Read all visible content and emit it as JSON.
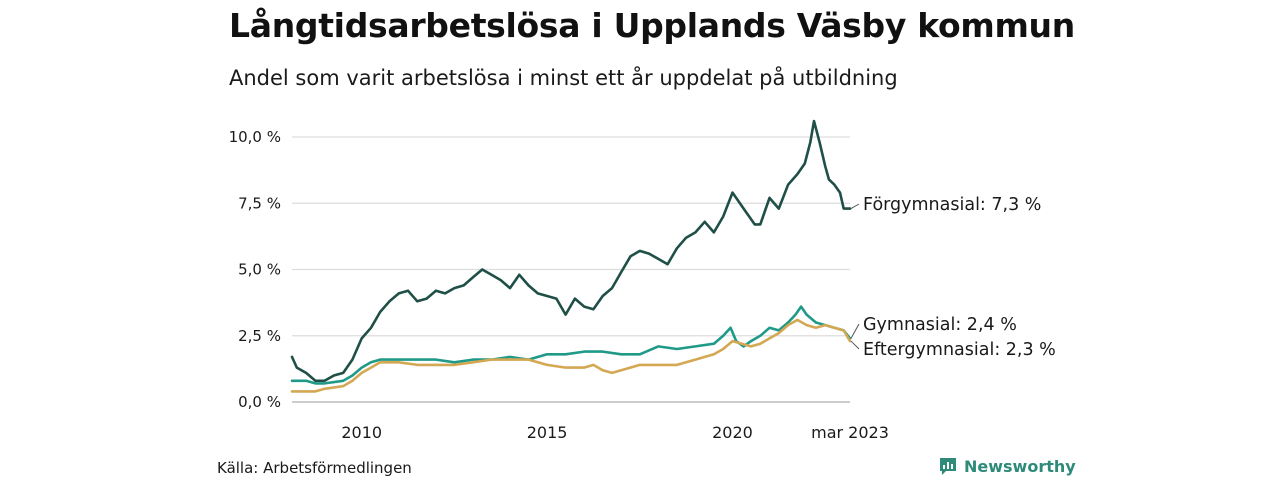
{
  "title": "Långtidsarbetslösa i Upplands Väsby kommun",
  "subtitle": "Andel som varit arbetslösa i minst ett år uppdelat på utbildning",
  "source": "Källa: Arbetsförmedlingen",
  "brand": "Newsworthy",
  "colors": {
    "forgymnasial": "#1f4f46",
    "gymnasial": "#1f9a88",
    "eftergymnasial": "#d4a853",
    "grid": "#dddddd",
    "brand": "#2e8b7a"
  },
  "chart_data": {
    "type": "line",
    "title": "Långtidsarbetslösa i Upplands Väsby kommun",
    "subtitle": "Andel som varit arbetslösa i minst ett år uppdelat på utbildning",
    "xlabel": "",
    "ylabel": "",
    "xlim": [
      2008.12,
      2023.17
    ],
    "ylim": [
      0,
      10.5
    ],
    "y_ticks": [
      {
        "value": 0,
        "label": "0,0 %"
      },
      {
        "value": 2.5,
        "label": "2,5 %"
      },
      {
        "value": 5,
        "label": "5,0 %"
      },
      {
        "value": 7.5,
        "label": "7,5 %"
      },
      {
        "value": 10,
        "label": "10,0 %"
      }
    ],
    "x_ticks": [
      {
        "value": 2010,
        "label": "2010"
      },
      {
        "value": 2015,
        "label": "2015"
      },
      {
        "value": 2020,
        "label": "2020"
      },
      {
        "value": 2023.17,
        "label": "mar 2023"
      }
    ],
    "grid": true,
    "legend": "direct labels at line ends",
    "series": [
      {
        "name": "Förgymnasial",
        "end_label": "Förgymnasial: 7,3 %",
        "color": "#1f4f46",
        "points": [
          [
            2008.12,
            1.7
          ],
          [
            2008.25,
            1.3
          ],
          [
            2008.5,
            1.1
          ],
          [
            2008.75,
            0.8
          ],
          [
            2009.0,
            0.8
          ],
          [
            2009.25,
            1.0
          ],
          [
            2009.5,
            1.1
          ],
          [
            2009.75,
            1.6
          ],
          [
            2010.0,
            2.4
          ],
          [
            2010.25,
            2.8
          ],
          [
            2010.5,
            3.4
          ],
          [
            2010.75,
            3.8
          ],
          [
            2011.0,
            4.1
          ],
          [
            2011.25,
            4.2
          ],
          [
            2011.5,
            3.8
          ],
          [
            2011.75,
            3.9
          ],
          [
            2012.0,
            4.2
          ],
          [
            2012.25,
            4.1
          ],
          [
            2012.5,
            4.3
          ],
          [
            2012.75,
            4.4
          ],
          [
            2013.0,
            4.7
          ],
          [
            2013.25,
            5.0
          ],
          [
            2013.5,
            4.8
          ],
          [
            2013.75,
            4.6
          ],
          [
            2014.0,
            4.3
          ],
          [
            2014.25,
            4.8
          ],
          [
            2014.5,
            4.4
          ],
          [
            2014.75,
            4.1
          ],
          [
            2015.0,
            4.0
          ],
          [
            2015.25,
            3.9
          ],
          [
            2015.5,
            3.3
          ],
          [
            2015.75,
            3.9
          ],
          [
            2016.0,
            3.6
          ],
          [
            2016.25,
            3.5
          ],
          [
            2016.5,
            4.0
          ],
          [
            2016.75,
            4.3
          ],
          [
            2017.0,
            4.9
          ],
          [
            2017.25,
            5.5
          ],
          [
            2017.5,
            5.7
          ],
          [
            2017.75,
            5.6
          ],
          [
            2018.0,
            5.4
          ],
          [
            2018.25,
            5.2
          ],
          [
            2018.5,
            5.8
          ],
          [
            2018.75,
            6.2
          ],
          [
            2019.0,
            6.4
          ],
          [
            2019.25,
            6.8
          ],
          [
            2019.5,
            6.4
          ],
          [
            2019.75,
            7.0
          ],
          [
            2020.0,
            7.9
          ],
          [
            2020.2,
            7.5
          ],
          [
            2020.4,
            7.1
          ],
          [
            2020.6,
            6.7
          ],
          [
            2020.75,
            6.7
          ],
          [
            2021.0,
            7.7
          ],
          [
            2021.25,
            7.3
          ],
          [
            2021.5,
            8.2
          ],
          [
            2021.75,
            8.6
          ],
          [
            2021.95,
            9.0
          ],
          [
            2022.1,
            9.8
          ],
          [
            2022.2,
            10.6
          ],
          [
            2022.35,
            9.8
          ],
          [
            2022.5,
            8.9
          ],
          [
            2022.6,
            8.4
          ],
          [
            2022.75,
            8.2
          ],
          [
            2022.9,
            7.9
          ],
          [
            2023.0,
            7.3
          ],
          [
            2023.17,
            7.3
          ]
        ]
      },
      {
        "name": "Gymnasial",
        "end_label": "Gymnasial: 2,4 %",
        "color": "#1f9a88",
        "points": [
          [
            2008.12,
            0.8
          ],
          [
            2008.5,
            0.8
          ],
          [
            2008.75,
            0.7
          ],
          [
            2009.0,
            0.7
          ],
          [
            2009.5,
            0.8
          ],
          [
            2009.75,
            1.0
          ],
          [
            2010.0,
            1.3
          ],
          [
            2010.25,
            1.5
          ],
          [
            2010.5,
            1.6
          ],
          [
            2011.0,
            1.6
          ],
          [
            2011.5,
            1.6
          ],
          [
            2012.0,
            1.6
          ],
          [
            2012.5,
            1.5
          ],
          [
            2013.0,
            1.6
          ],
          [
            2013.5,
            1.6
          ],
          [
            2014.0,
            1.7
          ],
          [
            2014.5,
            1.6
          ],
          [
            2015.0,
            1.8
          ],
          [
            2015.5,
            1.8
          ],
          [
            2016.0,
            1.9
          ],
          [
            2016.5,
            1.9
          ],
          [
            2017.0,
            1.8
          ],
          [
            2017.5,
            1.8
          ],
          [
            2018.0,
            2.1
          ],
          [
            2018.5,
            2.0
          ],
          [
            2019.0,
            2.1
          ],
          [
            2019.5,
            2.2
          ],
          [
            2019.75,
            2.5
          ],
          [
            2019.95,
            2.8
          ],
          [
            2020.1,
            2.3
          ],
          [
            2020.3,
            2.1
          ],
          [
            2020.5,
            2.3
          ],
          [
            2020.75,
            2.5
          ],
          [
            2021.0,
            2.8
          ],
          [
            2021.25,
            2.7
          ],
          [
            2021.5,
            3.0
          ],
          [
            2021.7,
            3.3
          ],
          [
            2021.85,
            3.6
          ],
          [
            2022.0,
            3.3
          ],
          [
            2022.25,
            3.0
          ],
          [
            2022.5,
            2.9
          ],
          [
            2022.75,
            2.8
          ],
          [
            2023.0,
            2.7
          ],
          [
            2023.17,
            2.4
          ]
        ]
      },
      {
        "name": "Eftergymnasial",
        "end_label": "Eftergymnasial: 2,3 %",
        "color": "#d4a853",
        "points": [
          [
            2008.12,
            0.4
          ],
          [
            2008.5,
            0.4
          ],
          [
            2008.75,
            0.4
          ],
          [
            2009.0,
            0.5
          ],
          [
            2009.5,
            0.6
          ],
          [
            2009.75,
            0.8
          ],
          [
            2010.0,
            1.1
          ],
          [
            2010.25,
            1.3
          ],
          [
            2010.5,
            1.5
          ],
          [
            2011.0,
            1.5
          ],
          [
            2011.5,
            1.4
          ],
          [
            2012.0,
            1.4
          ],
          [
            2012.5,
            1.4
          ],
          [
            2013.0,
            1.5
          ],
          [
            2013.5,
            1.6
          ],
          [
            2014.0,
            1.6
          ],
          [
            2014.5,
            1.6
          ],
          [
            2015.0,
            1.4
          ],
          [
            2015.5,
            1.3
          ],
          [
            2016.0,
            1.3
          ],
          [
            2016.25,
            1.4
          ],
          [
            2016.5,
            1.2
          ],
          [
            2016.75,
            1.1
          ],
          [
            2017.0,
            1.2
          ],
          [
            2017.5,
            1.4
          ],
          [
            2018.0,
            1.4
          ],
          [
            2018.5,
            1.4
          ],
          [
            2019.0,
            1.6
          ],
          [
            2019.5,
            1.8
          ],
          [
            2019.75,
            2.0
          ],
          [
            2020.0,
            2.3
          ],
          [
            2020.25,
            2.2
          ],
          [
            2020.5,
            2.1
          ],
          [
            2020.75,
            2.2
          ],
          [
            2021.0,
            2.4
          ],
          [
            2021.25,
            2.6
          ],
          [
            2021.5,
            2.9
          ],
          [
            2021.75,
            3.1
          ],
          [
            2022.0,
            2.9
          ],
          [
            2022.25,
            2.8
          ],
          [
            2022.5,
            2.9
          ],
          [
            2022.75,
            2.8
          ],
          [
            2023.0,
            2.7
          ],
          [
            2023.17,
            2.3
          ]
        ]
      }
    ]
  }
}
